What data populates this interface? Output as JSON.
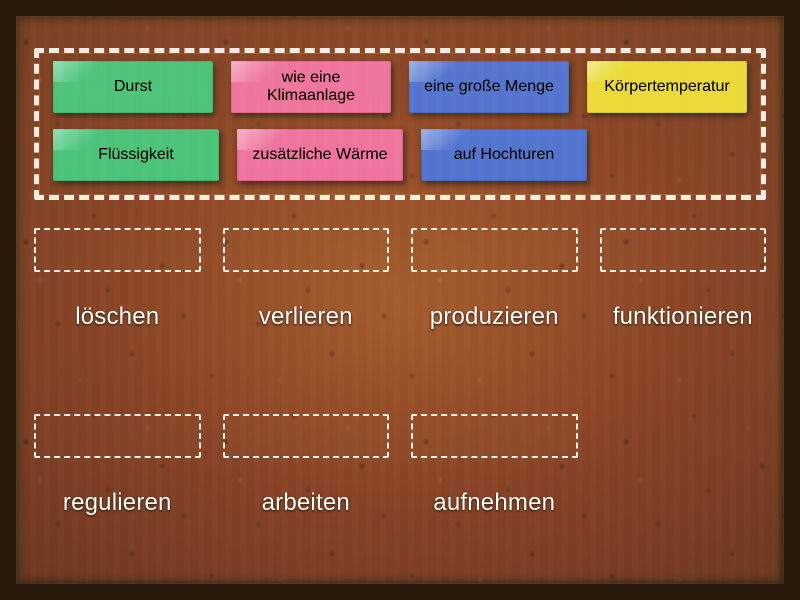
{
  "board": {
    "background_color": "#b98957",
    "frame_color": "#2a1a0c"
  },
  "tray": {
    "border_color": "#ffffff",
    "card_colors": {
      "green": "#74d6a8",
      "pink": "#f39fc0",
      "blue": "#7f9fe0",
      "yellow": "#f0e573"
    },
    "rows": [
      [
        {
          "label": "Durst",
          "color": "green"
        },
        {
          "label": "wie eine Klimaanlage",
          "color": "pink"
        },
        {
          "label": "eine große Menge",
          "color": "blue"
        },
        {
          "label": "Körpertemperatur",
          "color": "yellow"
        }
      ],
      [
        {
          "label": "Flüssigkeit",
          "color": "green"
        },
        {
          "label": "zusätzliche Wärme",
          "color": "pink"
        },
        {
          "label": "auf Hochturen",
          "color": "blue"
        }
      ]
    ]
  },
  "targets": {
    "row1": [
      "löschen",
      "verlieren",
      "produzieren",
      "funktionieren"
    ],
    "row2": [
      "regulieren",
      "arbeiten",
      "aufnehmen"
    ]
  },
  "typography": {
    "card_fontsize": 16,
    "verb_fontsize": 24,
    "verb_color": "#ffffff"
  }
}
